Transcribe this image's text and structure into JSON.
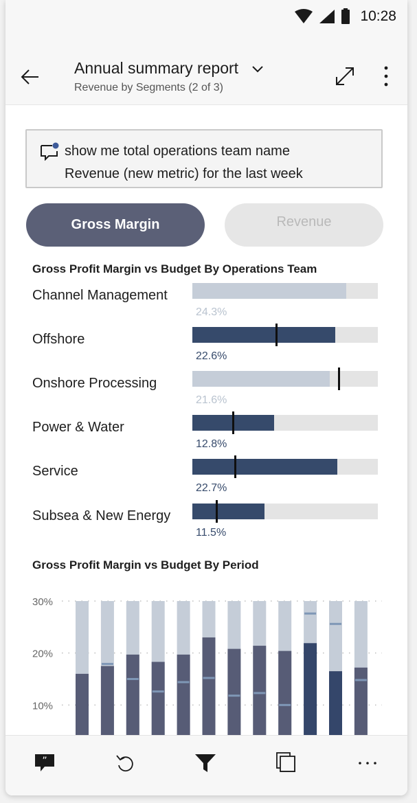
{
  "status_bar": {
    "time": "10:28",
    "icons": [
      "wifi-icon",
      "cellular-signal-icon",
      "battery-icon"
    ]
  },
  "header": {
    "title": "Annual summary report",
    "subtitle": "Revenue by Segments (2 of 3)",
    "icons": [
      "back-arrow-icon",
      "chevron-down-icon",
      "expand-icon",
      "more-vertical-icon"
    ]
  },
  "qa": {
    "text": "show me total operations team name\nRevenue (new metric) for the last week",
    "icon": "chat-comment-icon"
  },
  "toggle": {
    "active_label": "Gross Margin",
    "inactive_label": "Revenue"
  },
  "colors": {
    "pill_active": "#5b6077",
    "bar_dark": "#364a6b",
    "bar_light": "#c5cdd8",
    "track": "#e4e4e4",
    "target": "#0f0f0f",
    "period_bar": "#575c76",
    "period_bar_highlight": "#34466a",
    "period_bar_bg": "#c5cdd8",
    "period_target": "#7f97b6"
  },
  "team_chart": {
    "title": "Gross Profit Margin vs Budget By Operations Team",
    "rows": [
      {
        "label": "Channel Management",
        "value_label": "24.3%",
        "fill_fraction": 0.83,
        "target_fraction": null,
        "style": "light"
      },
      {
        "label": "Offshore",
        "value_label": "22.6%",
        "fill_fraction": 0.77,
        "target_fraction": 0.45,
        "style": "dark"
      },
      {
        "label": "Onshore Processing",
        "value_label": "21.6%",
        "fill_fraction": 0.74,
        "target_fraction": 0.79,
        "style": "light"
      },
      {
        "label": "Power & Water",
        "value_label": "12.8%",
        "fill_fraction": 0.44,
        "target_fraction": 0.22,
        "style": "dark"
      },
      {
        "label": "Service",
        "value_label": "22.7%",
        "fill_fraction": 0.78,
        "target_fraction": 0.23,
        "style": "dark"
      },
      {
        "label": "Subsea & New Energy",
        "value_label": "11.5%",
        "fill_fraction": 0.39,
        "target_fraction": 0.13,
        "style": "dark"
      }
    ]
  },
  "chart_data": {
    "type": "bar",
    "title": "Gross Profit Margin vs Budget By Period",
    "y_ticks": [
      "30%",
      "20%",
      "10%"
    ],
    "ylim": [
      0,
      30
    ],
    "values": [
      16,
      17.5,
      19.7,
      18.3,
      19.7,
      23,
      20.8,
      21.4,
      20.4,
      21.9,
      16.5,
      17.2
    ],
    "targets": [
      null,
      17.9,
      15,
      12.6,
      14.4,
      15.2,
      11.8,
      12.3,
      10,
      27.6,
      25.6,
      14.8
    ],
    "highlighted": [
      9,
      10
    ],
    "grid": true
  },
  "bottom_nav": {
    "items": [
      "qna-icon",
      "undo-icon",
      "filter-icon",
      "pages-icon",
      "more-horizontal-icon"
    ]
  }
}
